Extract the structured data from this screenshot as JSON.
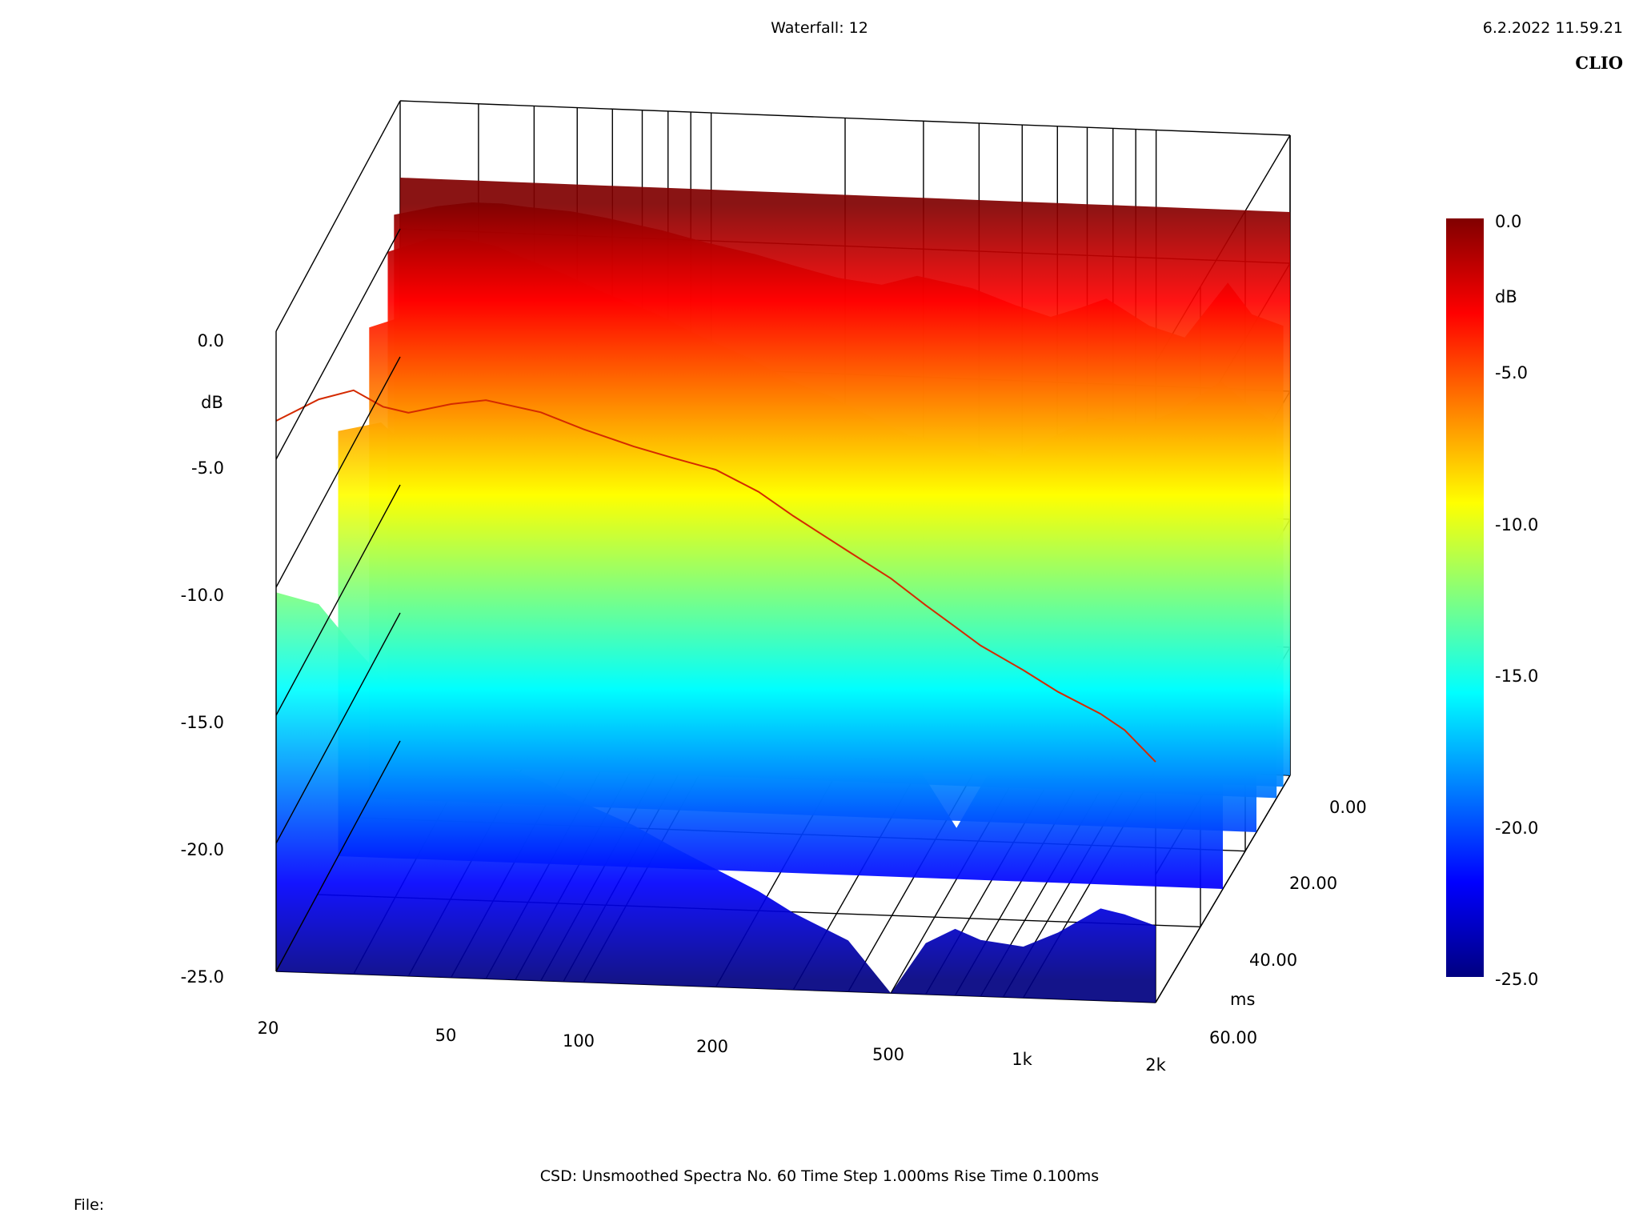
{
  "header": {
    "title": "Waterfall: 12",
    "timestamp": "6.2.2022 11.59.21",
    "brand": "CLIO"
  },
  "footer": {
    "info": "CSD:   Unsmoothed   Spectra No. 60   Time Step 1.000ms   Rise Time 0.100ms",
    "file_label": "File:",
    "file_value": ""
  },
  "colors": {
    "colormap": [
      "#800000",
      "#ff0000",
      "#ff8000",
      "#ffff00",
      "#80ff80",
      "#00ffff",
      "#0080ff",
      "#0000ff",
      "#000080"
    ],
    "grid": "#000000",
    "background": "#ffffff"
  },
  "chart_data": {
    "type": "area",
    "subtype": "waterfall-3d",
    "title": "Waterfall: 12",
    "x_axis": {
      "scale": "log",
      "range": [
        20,
        2000
      ],
      "ticks": [
        "20",
        "50",
        "100",
        "200",
        "500",
        "1k",
        "2k"
      ],
      "tick_values": [
        20,
        50,
        100,
        200,
        500,
        1000,
        2000
      ]
    },
    "y_axis": {
      "label": "dB",
      "range": [
        -25,
        0
      ],
      "ticks": [
        "0.0",
        "-5.0",
        "-10.0",
        "-15.0",
        "-20.0",
        "-25.0"
      ],
      "tick_values": [
        0,
        -5,
        -10,
        -15,
        -20,
        -25
      ]
    },
    "z_axis": {
      "label": "ms",
      "range": [
        0,
        60
      ],
      "ticks": [
        "0.00",
        "20.00",
        "40.00",
        "60.00"
      ],
      "tick_values": [
        0,
        20,
        40,
        60
      ]
    },
    "colorbar": {
      "label": "dB",
      "range": [
        -25,
        0
      ],
      "ticks": [
        "0.0",
        "-5.0",
        "-10.0",
        "-15.0",
        "-20.0",
        "-25.0"
      ],
      "tick_values": [
        0,
        -5,
        -10,
        -15,
        -20,
        -25
      ]
    },
    "freq": [
      20,
      25,
      30,
      35,
      40,
      50,
      60,
      80,
      100,
      130,
      160,
      200,
      250,
      300,
      400,
      500,
      600,
      700,
      800,
      1000,
      1200,
      1500,
      1700,
      2000
    ],
    "front_slice_db": [
      -3.5,
      -2.6,
      -2.2,
      -2.8,
      -3.0,
      -2.6,
      -2.4,
      -2.8,
      -3.4,
      -4.0,
      -4.4,
      -4.8,
      -5.6,
      -6.5,
      -7.8,
      -8.8,
      -9.8,
      -10.6,
      -11.3,
      -12.2,
      -13.0,
      -13.8,
      -14.4,
      -15.6
    ],
    "series": [
      {
        "t_ms": 0,
        "db_by_freq": [
          -3.0,
          -3.0,
          -3.0,
          -3.0,
          -3.0,
          -3.0,
          -3.0,
          -3.0,
          -3.0,
          -3.0,
          -3.0,
          -3.0,
          -3.0,
          -3.0,
          -3.0,
          -3.0,
          -3.0,
          -3.0,
          -3.0,
          -3.0,
          -3.0,
          -3.0,
          -3.0,
          -3.0
        ]
      },
      {
        "t_ms": 1,
        "db_by_freq": [
          -4.0,
          -3.6,
          -3.4,
          -3.4,
          -3.5,
          -3.6,
          -3.8,
          -4.2,
          -4.6,
          -5.0,
          -5.4,
          -5.8,
          -6.0,
          -5.6,
          -6.0,
          -6.6,
          -7.0,
          -6.6,
          -6.2,
          -7.2,
          -7.6,
          -5.4,
          -6.6,
          -7.0
        ]
      },
      {
        "t_ms": 2,
        "db_by_freq": [
          -5.0,
          -4.4,
          -4.4,
          -4.6,
          -5.0,
          -5.6,
          -6.2,
          -7.0,
          -7.8,
          -8.6,
          -9.4,
          -10.0,
          -10.8,
          -11.4,
          -11.6,
          -12.2,
          -11.4,
          -10.8,
          -10.4,
          -10.6,
          -10.0,
          -8.8,
          -9.6,
          -10.4
        ]
      },
      {
        "t_ms": 5,
        "db_by_freq": [
          -6.6,
          -6.0,
          -6.6,
          -7.4,
          -8.2,
          -9.4,
          -10.6,
          -11.6,
          -12.4,
          -13.2,
          -14.0,
          -14.8,
          -15.6,
          -16.4,
          -17.6,
          -21.0,
          -16.0,
          -17.4,
          -15.8,
          -16.6,
          -15.8,
          -14.8,
          -15.6,
          -16.4
        ]
      },
      {
        "t_ms": 10,
        "db_by_freq": [
          -8.4,
          -8.0,
          -9.2,
          -10.4,
          -11.6,
          -12.8,
          -14.0,
          -15.0,
          -15.8,
          -16.6,
          -17.4,
          -18.0,
          -18.6,
          -19.4,
          -20.4,
          -23.0,
          -20.6,
          -19.6,
          -19.8,
          -20.0,
          -19.4,
          -18.2,
          -18.6,
          -19.0
        ]
      },
      {
        "t_ms": 20,
        "db_by_freq": [
          -10.2,
          -10.6,
          -12.2,
          -13.4,
          -14.4,
          -15.4,
          -16.4,
          -17.2,
          -18.0,
          -18.8,
          -19.6,
          -20.4,
          -21.2,
          -22.0,
          -23.0,
          -25.0,
          -23.0,
          -22.4,
          -22.8,
          -23.0,
          -22.4,
          -21.4,
          -21.6,
          -22.0
        ]
      }
    ]
  }
}
